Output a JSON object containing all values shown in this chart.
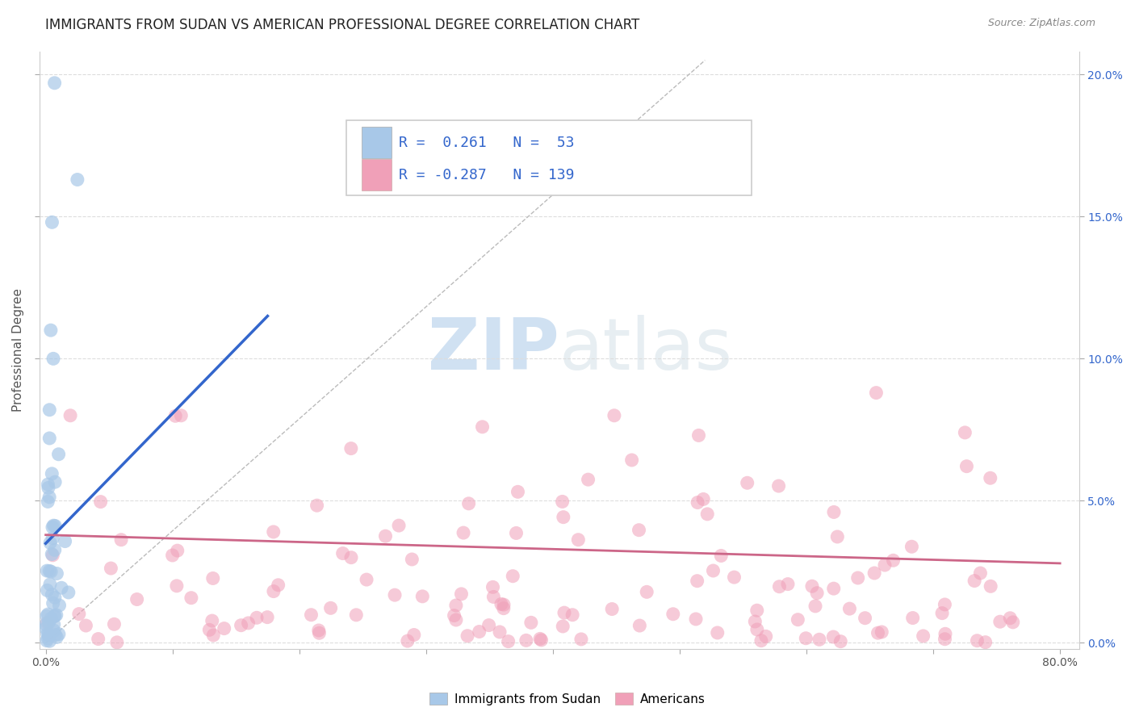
{
  "title": "IMMIGRANTS FROM SUDAN VS AMERICAN PROFESSIONAL DEGREE CORRELATION CHART",
  "source_text": "Source: ZipAtlas.com",
  "ylabel": "Professional Degree",
  "xlim": [
    -0.005,
    0.815
  ],
  "ylim": [
    -0.002,
    0.208
  ],
  "xticks": [
    0.0,
    0.1,
    0.2,
    0.3,
    0.4,
    0.5,
    0.6,
    0.7,
    0.8
  ],
  "xticklabels": [
    "0.0%",
    "",
    "",
    "",
    "",
    "",
    "",
    "",
    "80.0%"
  ],
  "yticks": [
    0.0,
    0.05,
    0.1,
    0.15,
    0.2
  ],
  "yticklabels_left": [
    "",
    "",
    "",
    "",
    ""
  ],
  "yticklabels_right": [
    "0.0%",
    "5.0%",
    "10.0%",
    "15.0%",
    "20.0%"
  ],
  "blue_R": "0.261",
  "blue_N": "53",
  "pink_R": "-0.287",
  "pink_N": "139",
  "blue_color": "#a8c8e8",
  "pink_color": "#f0a0b8",
  "blue_line_color": "#3366cc",
  "pink_line_color": "#cc6688",
  "dash_line_color": "#bbbbbb",
  "watermark_color": "#d0e4f0",
  "legend_label_blue": "Immigrants from Sudan",
  "legend_label_pink": "Americans",
  "legend_R_color": "#3366cc",
  "legend_N_color": "#3366cc",
  "title_fontsize": 12,
  "label_fontsize": 11,
  "tick_fontsize": 10,
  "figsize": [
    14.06,
    8.92
  ],
  "dpi": 100
}
